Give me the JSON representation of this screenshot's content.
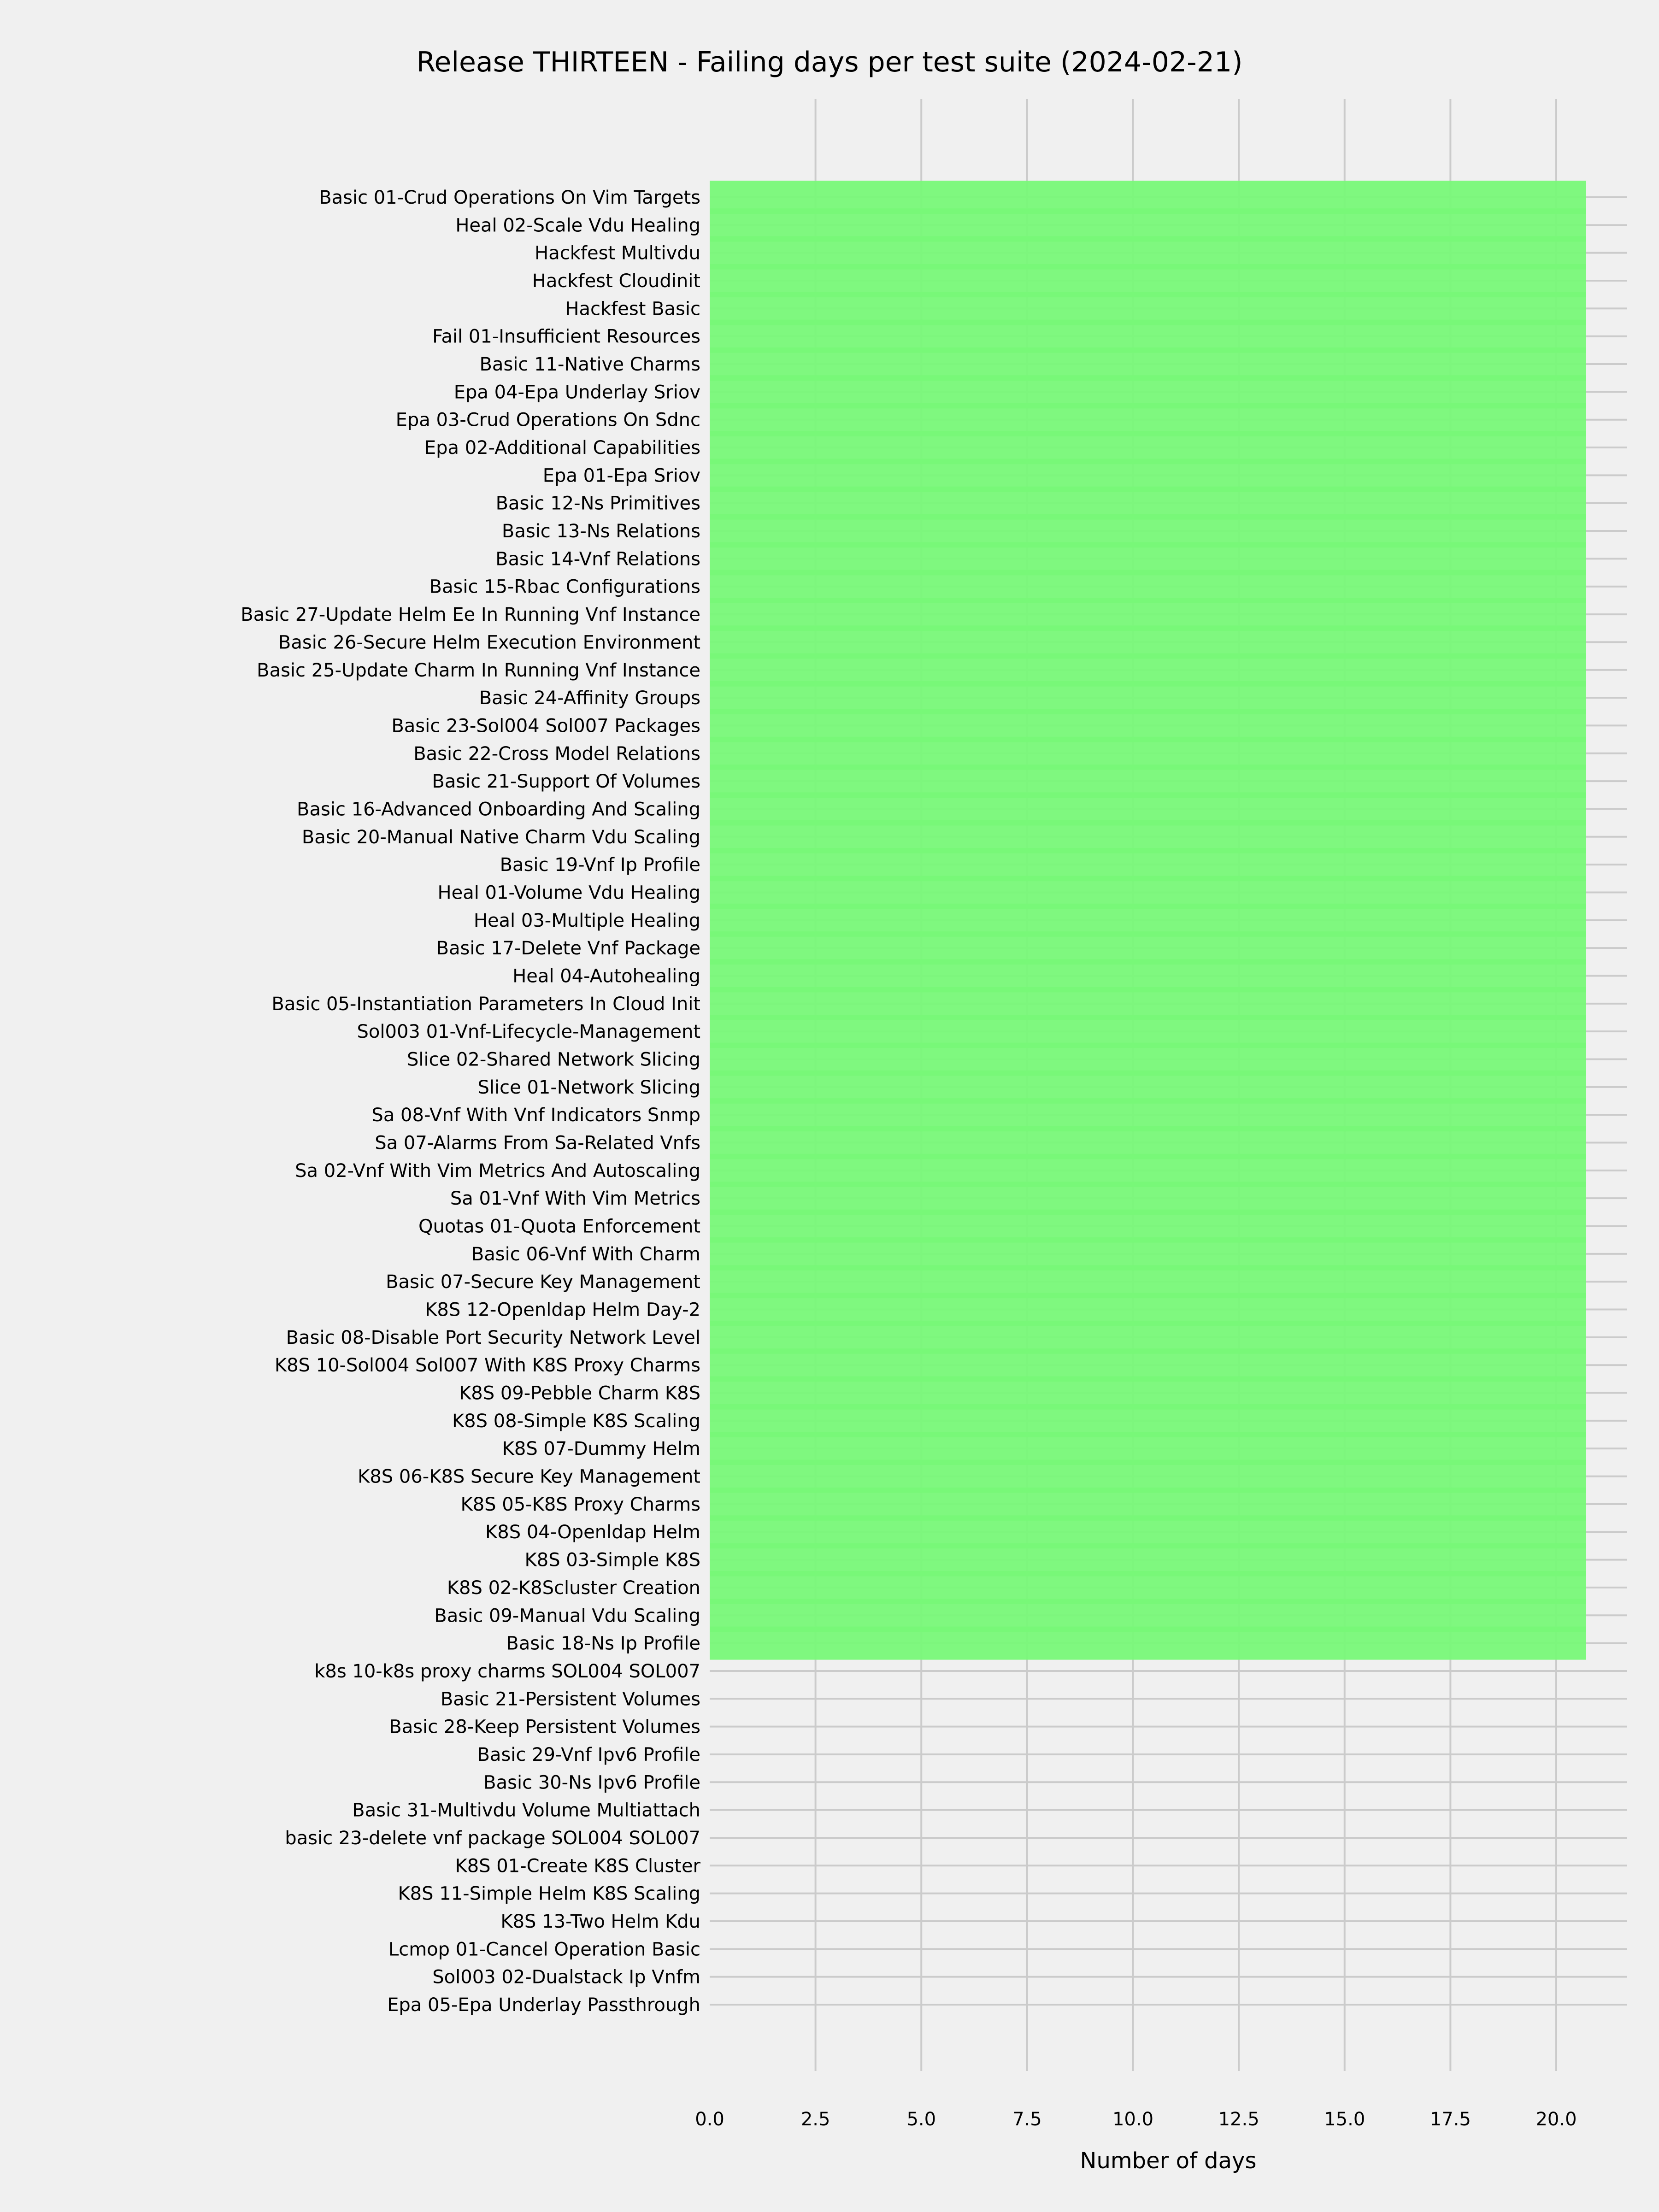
{
  "chart_data": {
    "type": "bar",
    "orientation": "horizontal",
    "title": "Release THIRTEEN - Failing days per test suite (2024-02-21)",
    "xlabel": "Number of days",
    "ylabel": "",
    "xlim": [
      0,
      21.5
    ],
    "xticks": [
      "0.0",
      "2.5",
      "5.0",
      "7.5",
      "10.0",
      "12.5",
      "15.0",
      "17.5",
      "20.0"
    ],
    "grid": true,
    "bar_color": "#78f878",
    "background_color": "#f0f0f0",
    "grid_color": "#cbcbcb",
    "categories": [
      "Basic 01-Crud Operations On Vim Targets",
      "Heal 02-Scale Vdu Healing",
      "Hackfest Multivdu",
      "Hackfest Cloudinit",
      "Hackfest Basic",
      "Fail 01-Insufficient Resources",
      "Basic 11-Native Charms",
      "Epa 04-Epa Underlay Sriov",
      "Epa 03-Crud Operations On Sdnc",
      "Epa 02-Additional Capabilities",
      "Epa 01-Epa Sriov",
      "Basic 12-Ns Primitives",
      "Basic 13-Ns Relations",
      "Basic 14-Vnf Relations",
      "Basic 15-Rbac Configurations",
      "Basic 27-Update Helm Ee In Running Vnf Instance",
      "Basic 26-Secure Helm Execution Environment",
      "Basic 25-Update Charm In Running Vnf Instance",
      "Basic 24-Affinity Groups",
      "Basic 23-Sol004 Sol007 Packages",
      "Basic 22-Cross Model Relations",
      "Basic 21-Support Of Volumes",
      "Basic 16-Advanced Onboarding And Scaling",
      "Basic 20-Manual Native Charm Vdu Scaling",
      "Basic 19-Vnf Ip Profile",
      "Heal 01-Volume Vdu Healing",
      "Heal 03-Multiple Healing",
      "Basic 17-Delete Vnf Package",
      "Heal 04-Autohealing",
      "Basic 05-Instantiation Parameters In Cloud Init",
      "Sol003 01-Vnf-Lifecycle-Management",
      "Slice 02-Shared Network Slicing",
      "Slice 01-Network Slicing",
      "Sa 08-Vnf With Vnf Indicators Snmp",
      "Sa 07-Alarms From Sa-Related Vnfs",
      "Sa 02-Vnf With Vim Metrics And Autoscaling",
      "Sa 01-Vnf With Vim Metrics",
      "Quotas 01-Quota Enforcement",
      "Basic 06-Vnf With Charm",
      "Basic 07-Secure Key Management",
      "K8S 12-Openldap Helm Day-2",
      "Basic 08-Disable Port Security Network Level",
      "K8S 10-Sol004 Sol007 With K8S Proxy Charms",
      "K8S 09-Pebble Charm K8S",
      "K8S 08-Simple K8S Scaling",
      "K8S 07-Dummy Helm",
      "K8S 06-K8S Secure Key Management",
      "K8S 05-K8S Proxy Charms",
      "K8S 04-Openldap Helm",
      "K8S 03-Simple K8S",
      "K8S 02-K8Scluster Creation",
      "Basic 09-Manual Vdu Scaling",
      "Basic 18-Ns Ip Profile",
      "k8s 10-k8s proxy charms SOL004 SOL007",
      "Basic 21-Persistent Volumes",
      "Basic 28-Keep Persistent Volumes",
      "Basic 29-Vnf Ipv6 Profile",
      "Basic 30-Ns Ipv6 Profile",
      "Basic 31-Multivdu Volume Multiattach",
      "basic 23-delete vnf package SOL004 SOL007",
      "K8S 01-Create K8S Cluster",
      "K8S 11-Simple Helm K8S Scaling",
      "K8S 13-Two Helm Kdu",
      "Lcmop 01-Cancel Operation Basic",
      "Sol003 02-Dualstack Ip Vnfm",
      "Epa 05-Epa Underlay Passthrough"
    ],
    "values": [
      20.7,
      20.7,
      20.7,
      20.7,
      20.7,
      20.7,
      20.7,
      20.7,
      20.7,
      20.7,
      20.7,
      20.7,
      20.7,
      20.7,
      20.7,
      20.7,
      20.7,
      20.7,
      20.7,
      20.7,
      20.7,
      20.7,
      20.7,
      20.7,
      20.7,
      20.7,
      20.7,
      20.7,
      20.7,
      20.7,
      20.7,
      20.7,
      20.7,
      20.7,
      20.7,
      20.7,
      20.7,
      20.7,
      20.7,
      20.7,
      20.7,
      20.7,
      20.7,
      20.7,
      20.7,
      20.7,
      20.7,
      20.7,
      20.7,
      20.7,
      20.7,
      20.7,
      20.7,
      0,
      0,
      0,
      0,
      0,
      0,
      0,
      0,
      0,
      0,
      0,
      0,
      0
    ]
  }
}
